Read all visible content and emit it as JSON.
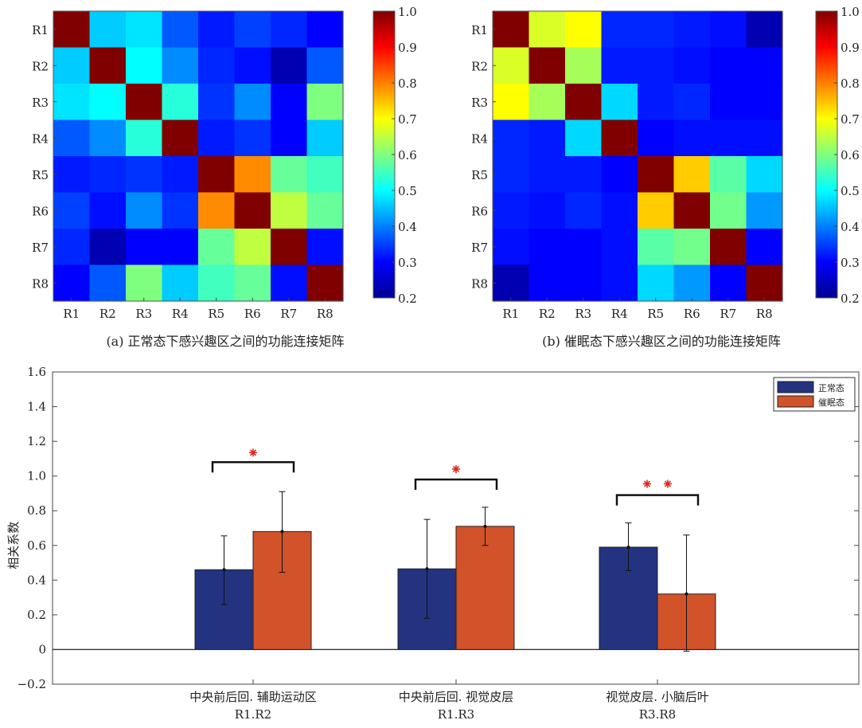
{
  "chart_data": [
    {
      "type": "heatmap",
      "caption": "(a) 正常态下感兴趣区之间的功能连接矩阵",
      "row_labels": [
        "R1",
        "R2",
        "R3",
        "R4",
        "R5",
        "R6",
        "R7",
        "R8"
      ],
      "col_labels": [
        "R1",
        "R2",
        "R3",
        "R4",
        "R5",
        "R6",
        "R7",
        "R8"
      ],
      "values": [
        [
          1.0,
          0.46,
          0.48,
          0.37,
          0.32,
          0.35,
          0.33,
          0.3
        ],
        [
          0.46,
          1.0,
          0.5,
          0.41,
          0.33,
          0.31,
          0.24,
          0.37
        ],
        [
          0.48,
          0.5,
          1.0,
          0.53,
          0.34,
          0.41,
          0.3,
          0.6
        ],
        [
          0.37,
          0.41,
          0.53,
          1.0,
          0.32,
          0.34,
          0.3,
          0.46
        ],
        [
          0.32,
          0.33,
          0.34,
          0.32,
          1.0,
          0.79,
          0.58,
          0.55
        ],
        [
          0.35,
          0.31,
          0.41,
          0.34,
          0.79,
          1.0,
          0.65,
          0.58
        ],
        [
          0.33,
          0.24,
          0.3,
          0.3,
          0.58,
          0.65,
          1.0,
          0.31
        ],
        [
          0.3,
          0.37,
          0.6,
          0.46,
          0.55,
          0.58,
          0.31,
          1.0
        ]
      ],
      "colorbar": {
        "min": 0.2,
        "max": 1.0,
        "ticks": [
          "0.2",
          "0.3",
          "0.4",
          "0.5",
          "0.6",
          "0.7",
          "0.8",
          "0.9",
          "1.0"
        ]
      }
    },
    {
      "type": "heatmap",
      "caption": "(b) 催眠态下感兴趣区之间的功能连接矩阵",
      "row_labels": [
        "R1",
        "R2",
        "R3",
        "R4",
        "R5",
        "R6",
        "R7",
        "R8"
      ],
      "col_labels": [
        "R1",
        "R2",
        "R3",
        "R4",
        "R5",
        "R6",
        "R7",
        "R8"
      ],
      "values": [
        [
          1.0,
          0.67,
          0.7,
          0.33,
          0.33,
          0.32,
          0.31,
          0.24
        ],
        [
          0.67,
          1.0,
          0.63,
          0.32,
          0.32,
          0.31,
          0.3,
          0.3
        ],
        [
          0.7,
          0.63,
          1.0,
          0.47,
          0.32,
          0.33,
          0.3,
          0.3
        ],
        [
          0.33,
          0.32,
          0.47,
          1.0,
          0.3,
          0.31,
          0.31,
          0.31
        ],
        [
          0.33,
          0.32,
          0.32,
          0.3,
          1.0,
          0.74,
          0.57,
          0.47
        ],
        [
          0.32,
          0.31,
          0.33,
          0.31,
          0.74,
          1.0,
          0.59,
          0.42
        ],
        [
          0.31,
          0.3,
          0.3,
          0.31,
          0.57,
          0.59,
          1.0,
          0.3
        ],
        [
          0.24,
          0.3,
          0.3,
          0.31,
          0.47,
          0.42,
          0.3,
          1.0
        ]
      ],
      "colorbar": {
        "min": 0.2,
        "max": 1.0,
        "ticks": [
          "0.2",
          "0.3",
          "0.4",
          "0.5",
          "0.6",
          "0.7",
          "0.8",
          "0.9",
          "1.0"
        ]
      }
    },
    {
      "type": "bar",
      "ylabel": "相关系数",
      "ylim": [
        -0.2,
        1.6
      ],
      "yticks": [
        -0.2,
        0,
        0.2,
        0.4,
        0.6,
        0.8,
        1.0,
        1.2,
        1.4,
        1.6
      ],
      "ytick_labels": [
        "−0.2",
        "0",
        "0.2",
        "0.4",
        "0.6",
        "0.8",
        "1.0",
        "1.2",
        "1.4",
        "1.6"
      ],
      "categories": [
        {
          "line1": "中央前后回. 辅助运动区",
          "line2": "R1.R2"
        },
        {
          "line1": "中央前后回. 视觉皮层",
          "line2": "R1.R3"
        },
        {
          "line1": "视觉皮层. 小脑后叶",
          "line2": "R3.R8"
        }
      ],
      "series": [
        {
          "name": "正常态",
          "color": "#23337f",
          "values": [
            0.46,
            0.465,
            0.59
          ],
          "err_low": [
            0.26,
            0.18,
            0.455
          ],
          "err_high": [
            0.655,
            0.75,
            0.73
          ]
        },
        {
          "name": "催眠态",
          "color": "#d2522a",
          "values": [
            0.68,
            0.71,
            0.32
          ],
          "err_low": [
            0.445,
            0.6,
            -0.01
          ],
          "err_high": [
            0.91,
            0.82,
            0.66
          ]
        }
      ],
      "significance": [
        {
          "stars": 1,
          "bracket_y": 1.08,
          "star_y": 1.135
        },
        {
          "stars": 1,
          "bracket_y": 0.98,
          "star_y": 1.04
        },
        {
          "stars": 2,
          "bracket_y": 0.89,
          "star_y": 0.955
        }
      ],
      "legend_position": "top-right",
      "grid": false
    }
  ]
}
